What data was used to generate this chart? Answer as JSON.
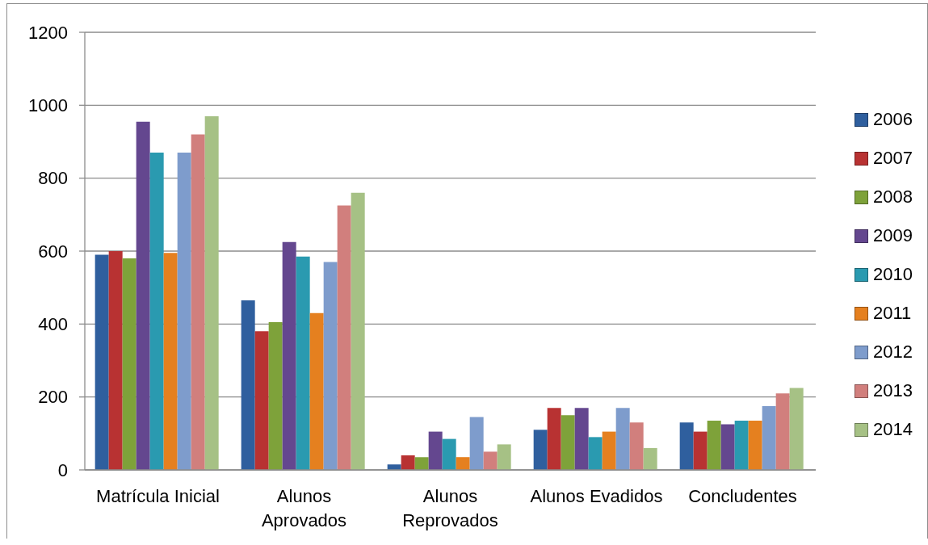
{
  "chart_data": {
    "type": "bar",
    "categories": [
      "Matrícula Inicial",
      "Alunos Aprovados",
      "Alunos Reprovados",
      "Alunos Evadidos",
      "Concludentes"
    ],
    "series": [
      {
        "name": "2006",
        "color": "#2f5f9e",
        "values": [
          590,
          465,
          15,
          110,
          130
        ]
      },
      {
        "name": "2007",
        "color": "#b83232",
        "values": [
          600,
          380,
          40,
          170,
          105
        ]
      },
      {
        "name": "2008",
        "color": "#7ea23a",
        "values": [
          580,
          405,
          35,
          150,
          135
        ]
      },
      {
        "name": "2009",
        "color": "#64478f",
        "values": [
          955,
          625,
          105,
          170,
          125
        ]
      },
      {
        "name": "2010",
        "color": "#2a9ab0",
        "values": [
          870,
          585,
          85,
          90,
          135
        ]
      },
      {
        "name": "2011",
        "color": "#e5801f",
        "values": [
          595,
          430,
          35,
          105,
          135
        ]
      },
      {
        "name": "2012",
        "color": "#7e9ccc",
        "values": [
          870,
          570,
          145,
          170,
          175
        ]
      },
      {
        "name": "2013",
        "color": "#d17f7d",
        "values": [
          920,
          725,
          50,
          130,
          210
        ]
      },
      {
        "name": "2014",
        "color": "#a6c185",
        "values": [
          970,
          760,
          70,
          60,
          225
        ]
      }
    ],
    "ylim": [
      0,
      1200
    ],
    "yticks": [
      0,
      200,
      400,
      600,
      800,
      1000,
      1200
    ],
    "grid": "y",
    "legend": "right"
  }
}
